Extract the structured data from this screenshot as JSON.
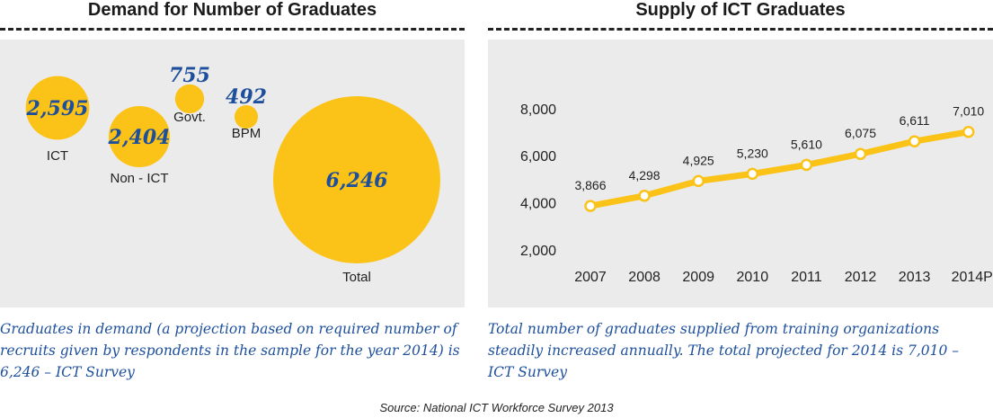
{
  "left": {
    "title": "Demand for Number of Graduates",
    "caption": "Graduates in demand (a projection based on required number of recruits given by respondents in the sample for the year 2014) is 6,246 – ICT Survey"
  },
  "right": {
    "title": "Supply of ICT Graduates",
    "caption": "Total number of graduates supplied from training organizations steadily increased annually. The total projected for 2014 is 7,010 – ICT Survey"
  },
  "source": "Source: National ICT Workforce Survey 2013",
  "colors": {
    "bubble": "#fbc217",
    "value": "#1d4f9c",
    "panel": "#ebebeb"
  },
  "chart_data": [
    {
      "type": "bubble",
      "title": "Demand for Number of Graduates",
      "categories": [
        "ICT",
        "Non - ICT",
        "Govt.",
        "BPM",
        "Total"
      ],
      "values": [
        2595,
        2404,
        755,
        492,
        6246
      ],
      "labels": [
        "2,595",
        "2,404",
        "755",
        "492",
        "6,246"
      ]
    },
    {
      "type": "line",
      "title": "Supply of ICT Graduates",
      "categories": [
        "2007",
        "2008",
        "2009",
        "2010",
        "2011",
        "2012",
        "2013",
        "2014P"
      ],
      "values": [
        3866,
        4298,
        4925,
        5230,
        5610,
        6075,
        6611,
        7010
      ],
      "labels": [
        "3,866",
        "4,298",
        "4,925",
        "5,230",
        "5,610",
        "6,075",
        "6,611",
        "7,010"
      ],
      "yticks": [
        "2,000",
        "4,000",
        "6,000",
        "8,000"
      ],
      "ytick_values": [
        2000,
        4000,
        6000,
        8000
      ],
      "ylim": [
        2000,
        8000
      ],
      "grid": false
    }
  ]
}
